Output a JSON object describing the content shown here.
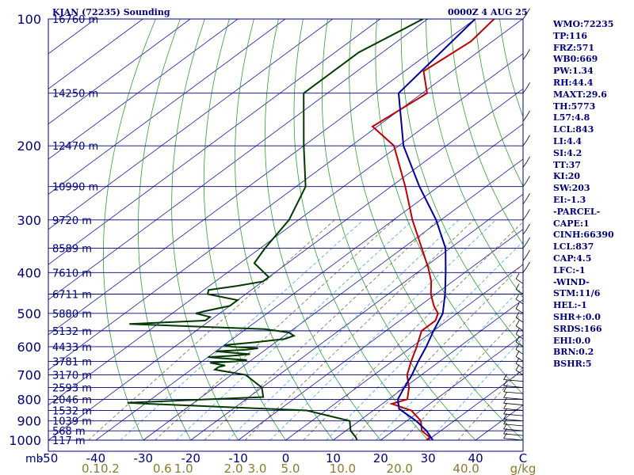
{
  "header": {
    "station": "KJAN (72235) Sounding",
    "time": "0000Z  4 AUG 25"
  },
  "indices": [
    "WMO:72235",
    "TP:116",
    "FRZ:571",
    "WB0:669",
    "PW:1.34",
    "RH:44.4",
    "MAXT:29.6",
    "TH:5773",
    "L57:4.8",
    "LCL:843",
    "LI:4.4",
    "SI:4.2",
    "TT:37",
    "KI:20",
    "SW:203",
    "EI:-1.3",
    "-PARCEL-",
    "CAPE:1",
    "CINH:66390",
    "LCL:837",
    "CAP:4.5",
    "LFC:-1",
    "-WIND-",
    "STM:11/6",
    "HEL:-1",
    "SHR+:0.0",
    "SRDS:166",
    "EHI:0.0",
    "BRN:0.2",
    "BSHR:5"
  ],
  "chart_data": {
    "type": "line",
    "title": "KJAN (72235) Sounding",
    "subtitle": "0000Z  4 AUG 25",
    "pressure_unit_label": "mb",
    "mixing_ratio_unit_label": "g/kg",
    "xlim": [
      -50,
      50
    ],
    "ylim": [
      1000,
      100
    ],
    "y_scale": "log",
    "isobars": [
      100,
      150,
      200,
      250,
      300,
      350,
      400,
      450,
      500,
      550,
      600,
      650,
      700,
      750,
      800,
      850,
      900,
      950,
      1000
    ],
    "pressure_ticks": [
      100,
      200,
      300,
      400,
      500,
      600,
      700,
      800,
      900,
      1000
    ],
    "temperature_ticks": [
      "-50",
      "-40",
      "-30",
      "-20",
      "-10",
      "0",
      "10",
      "20",
      "30",
      "40",
      "C"
    ],
    "mixing_ratio_ticks": [
      {
        "label": "0.1",
        "t": -41
      },
      {
        "label": "0.2",
        "t": -37
      },
      {
        "label": "0.6",
        "t": -26
      },
      {
        "label": "1.0",
        "t": -21.5
      },
      {
        "label": "2.0",
        "t": -11
      },
      {
        "label": "3.0",
        "t": -6
      },
      {
        "label": "5.0",
        "t": 1
      },
      {
        "label": "10.0",
        "t": 12
      },
      {
        "label": "20.0",
        "t": 24
      },
      {
        "label": "40.0",
        "t": 38
      }
    ],
    "height_labels": [
      {
        "p": 100,
        "text": "16760 m"
      },
      {
        "p": 150,
        "text": "14250 m"
      },
      {
        "p": 200,
        "text": "12470 m"
      },
      {
        "p": 250,
        "text": "10990 m"
      },
      {
        "p": 300,
        "text": "9720 m"
      },
      {
        "p": 350,
        "text": "8589 m"
      },
      {
        "p": 400,
        "text": "7610 m"
      },
      {
        "p": 450,
        "text": "6711 m"
      },
      {
        "p": 500,
        "text": "5880 m"
      },
      {
        "p": 550,
        "text": "5132 m"
      },
      {
        "p": 600,
        "text": "4433 m"
      },
      {
        "p": 650,
        "text": "3781 m"
      },
      {
        "p": 700,
        "text": "3170 m"
      },
      {
        "p": 750,
        "text": "2593 m"
      },
      {
        "p": 800,
        "text": "2046 m"
      },
      {
        "p": 850,
        "text": "1532 m"
      },
      {
        "p": 900,
        "text": "1039 m"
      },
      {
        "p": 950,
        "text": "568 m"
      },
      {
        "p": 1000,
        "text": "117 m"
      }
    ],
    "series": [
      {
        "name": "Temperature",
        "color": "#c00000",
        "points": [
          [
            100,
            -76
          ],
          [
            113,
            -74.5
          ],
          [
            133,
            -76
          ],
          [
            150,
            -69
          ],
          [
            180,
            -71
          ],
          [
            200,
            -61
          ],
          [
            250,
            -47
          ],
          [
            300,
            -36
          ],
          [
            350,
            -26
          ],
          [
            390,
            -19
          ],
          [
            420,
            -14.5
          ],
          [
            450,
            -11
          ],
          [
            480,
            -7
          ],
          [
            500,
            -4
          ],
          [
            520,
            -2.5
          ],
          [
            550,
            -2.5
          ],
          [
            600,
            1
          ],
          [
            650,
            4
          ],
          [
            700,
            7
          ],
          [
            750,
            11
          ],
          [
            800,
            14
          ],
          [
            820,
            12
          ],
          [
            850,
            18
          ],
          [
            900,
            23
          ],
          [
            950,
            26
          ],
          [
            985,
            29.6
          ],
          [
            1000,
            29.6
          ]
        ]
      },
      {
        "name": "Dewpoint",
        "color": "#003a00",
        "points": [
          [
            100,
            -91
          ],
          [
            120,
            -95
          ],
          [
            150,
            -95
          ],
          [
            200,
            -80
          ],
          [
            250,
            -68
          ],
          [
            300,
            -62
          ],
          [
            350,
            -59
          ],
          [
            380,
            -57
          ],
          [
            410,
            -50
          ],
          [
            420,
            -50
          ],
          [
            430,
            -54
          ],
          [
            440,
            -59
          ],
          [
            450,
            -58
          ],
          [
            465,
            -50
          ],
          [
            480,
            -50
          ],
          [
            495,
            -54
          ],
          [
            500,
            -55
          ],
          [
            510,
            -51
          ],
          [
            520,
            -51
          ],
          [
            530,
            -66
          ],
          [
            545,
            -36
          ],
          [
            555,
            -30
          ],
          [
            565,
            -28
          ],
          [
            575,
            -29
          ],
          [
            585,
            -34
          ],
          [
            595,
            -40
          ],
          [
            600,
            -38
          ],
          [
            605,
            -32
          ],
          [
            610,
            -34
          ],
          [
            615,
            -40
          ],
          [
            620,
            -36
          ],
          [
            625,
            -32
          ],
          [
            630,
            -35
          ],
          [
            635,
            -40
          ],
          [
            640,
            -36
          ],
          [
            645,
            -31
          ],
          [
            650,
            -33
          ],
          [
            655,
            -38
          ],
          [
            660,
            -36
          ],
          [
            665,
            -34
          ],
          [
            670,
            -35
          ],
          [
            680,
            -35
          ],
          [
            700,
            -27
          ],
          [
            750,
            -20
          ],
          [
            790,
            -17
          ],
          [
            815,
            -44
          ],
          [
            820,
            -39
          ],
          [
            850,
            -4
          ],
          [
            900,
            8
          ],
          [
            950,
            11
          ],
          [
            985,
            14
          ],
          [
            1000,
            15
          ]
        ]
      },
      {
        "name": "Parcel",
        "color": "#0000a0",
        "points": [
          [
            100,
            -80
          ],
          [
            150,
            -75
          ],
          [
            200,
            -59
          ],
          [
            250,
            -44
          ],
          [
            300,
            -31
          ],
          [
            350,
            -21
          ],
          [
            400,
            -14
          ],
          [
            450,
            -8
          ],
          [
            500,
            -3
          ],
          [
            550,
            0
          ],
          [
            600,
            3
          ],
          [
            650,
            5.5
          ],
          [
            700,
            8
          ],
          [
            750,
            10
          ],
          [
            800,
            12
          ],
          [
            843,
            15
          ],
          [
            900,
            22
          ],
          [
            950,
            27
          ],
          [
            1000,
            31
          ]
        ]
      }
    ],
    "wind_note": "wind barbs along right edge"
  }
}
